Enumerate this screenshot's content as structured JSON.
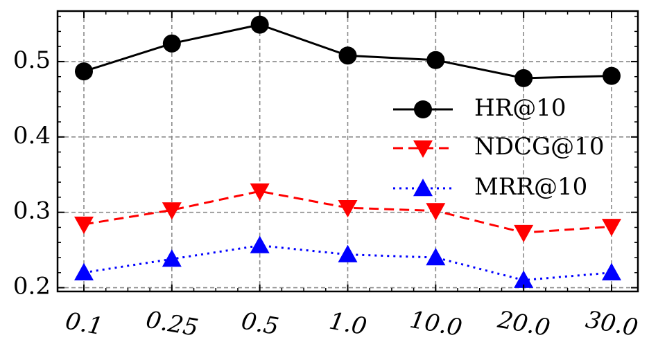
{
  "chart_data": {
    "type": "line",
    "categories": [
      "0.1",
      "0.25",
      "0.5",
      "1.0",
      "10.0",
      "20.0",
      "30.0"
    ],
    "series": [
      {
        "name": "HR@10",
        "values": [
          0.487,
          0.524,
          0.549,
          0.508,
          0.502,
          0.478,
          0.481
        ],
        "color": "#000000",
        "line_style": "solid",
        "marker": "circle"
      },
      {
        "name": "NDCG@10",
        "values": [
          0.284,
          0.303,
          0.328,
          0.306,
          0.302,
          0.273,
          0.281
        ],
        "color": "#ff0000",
        "line_style": "dashed",
        "marker": "triangle-down"
      },
      {
        "name": "MRR@10",
        "values": [
          0.22,
          0.238,
          0.256,
          0.244,
          0.24,
          0.21,
          0.22
        ],
        "color": "#0000ff",
        "line_style": "dotted",
        "marker": "triangle-up"
      }
    ],
    "y_ticks": [
      "0.2",
      "0.3",
      "0.4",
      "0.5"
    ],
    "ylim": [
      0.195,
      0.567
    ],
    "grid": true,
    "legend_position": "right-center"
  }
}
